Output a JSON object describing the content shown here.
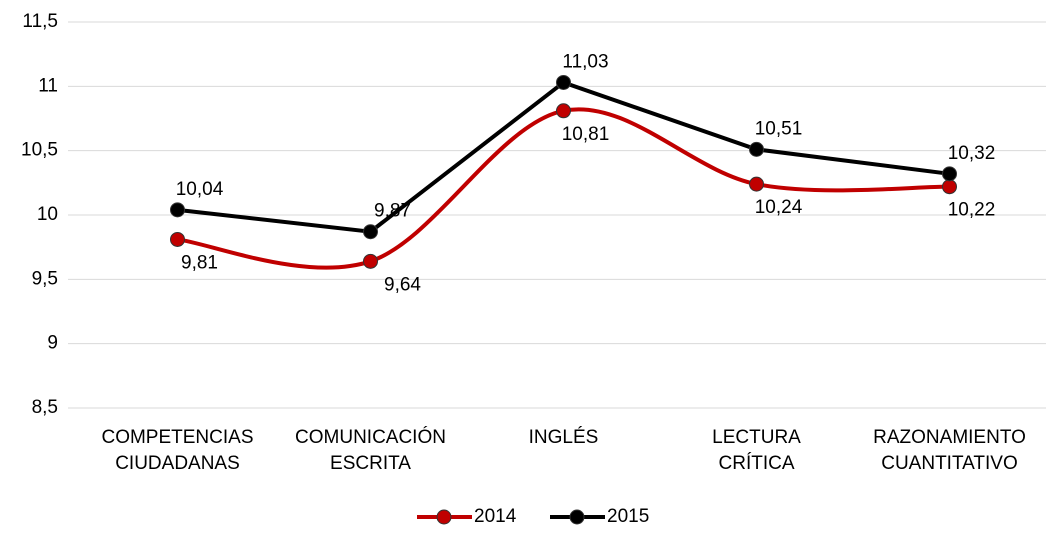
{
  "chart_data": {
    "type": "line",
    "categories": [
      "COMPETENCIAS CIUDADANAS",
      "COMUNICACIÓN ESCRITA",
      "INGLÉS",
      "LECTURA CRÍTICA",
      "RAZONAMIENTO CUANTITATIVO"
    ],
    "series": [
      {
        "name": "2014",
        "color": "#c00000",
        "smooth": true,
        "values": [
          9.81,
          9.64,
          10.81,
          10.24,
          10.22
        ],
        "value_labels": [
          "9,81",
          "9,64",
          "10,81",
          "10,24",
          "10,22"
        ]
      },
      {
        "name": "2015",
        "color": "#000000",
        "smooth": false,
        "values": [
          10.04,
          9.87,
          11.03,
          10.51,
          10.32
        ],
        "value_labels": [
          "10,04",
          "9,87",
          "11,03",
          "10,51",
          "10,32"
        ]
      }
    ],
    "ylim": [
      8.5,
      11.5
    ],
    "yticks": [
      {
        "value": 8.5,
        "label": "8,5"
      },
      9,
      {
        "value": 9.5,
        "label": "9,5"
      },
      10,
      {
        "value": 10.5,
        "label": "10,5"
      },
      11,
      {
        "value": 11.5,
        "label": "11,5"
      }
    ],
    "grid": true,
    "legend": "bottom"
  }
}
